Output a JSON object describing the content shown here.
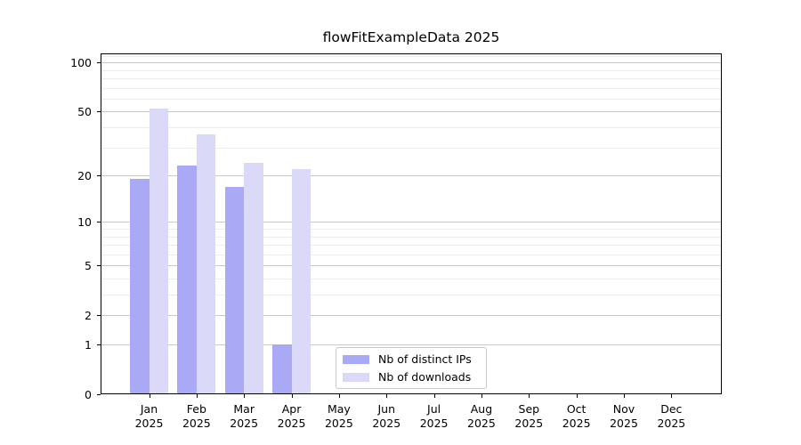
{
  "title": "flowFitExampleData 2025",
  "chart_data": {
    "type": "bar",
    "title": "flowFitExampleData 2025",
    "categories": [
      "Jan",
      "Feb",
      "Mar",
      "Apr",
      "May",
      "Jun",
      "Jul",
      "Aug",
      "Sep",
      "Oct",
      "Nov",
      "Dec"
    ],
    "x_tick_second_line": "2025",
    "series": [
      {
        "name": "Nb of distinct IPs",
        "color": "#a9a9f6",
        "values": [
          19,
          23,
          17,
          1,
          0,
          0,
          0,
          0,
          0,
          0,
          0,
          0
        ]
      },
      {
        "name": "Nb of downloads",
        "color": "#dadaf8",
        "values": [
          52,
          36,
          24,
          22,
          0,
          0,
          0,
          0,
          0,
          0,
          0,
          0
        ]
      }
    ],
    "xlabel": "",
    "ylabel": "",
    "yscale": "log1p",
    "ylim": [
      0,
      114
    ],
    "y_major_ticks": [
      0,
      1,
      2,
      5,
      10,
      20,
      50,
      100
    ],
    "y_tick_labels": [
      "0",
      "1",
      "2",
      "5",
      "10",
      "20",
      "50",
      "100"
    ],
    "y_minor_gridlines": [
      3,
      4,
      6,
      7,
      8,
      9,
      30,
      40,
      60,
      70,
      80,
      90,
      110
    ],
    "grid": "horizontal",
    "legend_position": "lower center"
  },
  "colors": {
    "background": "#ffffff",
    "spine": "#000000",
    "grid_major": "#c9c9c9",
    "grid_minor": "#ececec",
    "text": "#000000",
    "legend_border": "#c9c9c9"
  }
}
